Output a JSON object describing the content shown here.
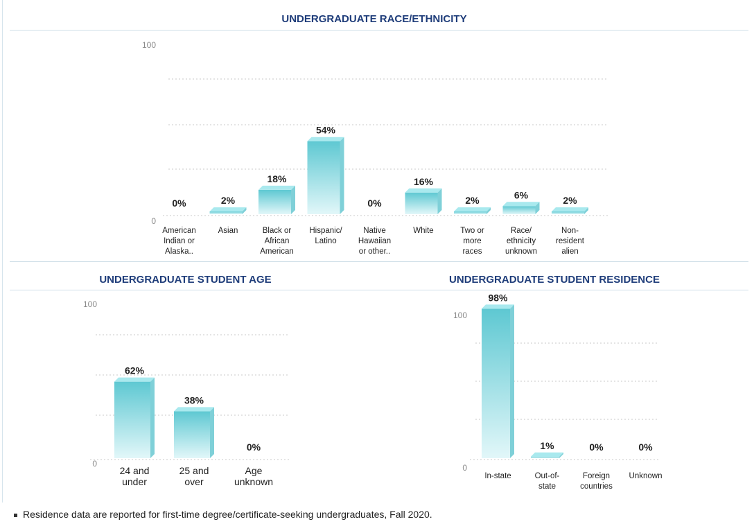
{
  "sections": {
    "race": {
      "title": "UNDERGRADUATE RACE/ETHNICITY"
    },
    "age": {
      "title": "UNDERGRADUATE STUDENT AGE"
    },
    "residence": {
      "title": "UNDERGRADUATE STUDENT RESIDENCE"
    }
  },
  "footnote": "Residence data are reported for first-time degree/certificate-seeking undergraduates, Fall 2020.",
  "colors": {
    "bar_front_top": "#5ec8d2",
    "bar_front_bottom": "#e2f7f9",
    "bar_side": "#7fd0d8",
    "bar_top": "#a9e9ee",
    "grid": "#c8c8c8",
    "title": "#1f3d7a"
  },
  "chart_data": [
    {
      "id": "race",
      "type": "bar",
      "title": "UNDERGRADUATE RACE/ETHNICITY",
      "categories": [
        [
          "American",
          "Indian or",
          "Alaska.."
        ],
        [
          "Asian"
        ],
        [
          "Black or",
          "African",
          "American"
        ],
        [
          "Hispanic/",
          "Latino"
        ],
        [
          "Native",
          "Hawaiian",
          "or other.."
        ],
        [
          "White"
        ],
        [
          "Two or",
          "more",
          "races"
        ],
        [
          "Race/",
          "ethnicity",
          "unknown"
        ],
        [
          "Non-",
          "resident",
          "alien"
        ]
      ],
      "values": [
        0,
        2,
        18,
        54,
        0,
        16,
        2,
        6,
        2
      ],
      "value_labels": [
        "0%",
        "2%",
        "18%",
        "54%",
        "0%",
        "16%",
        "2%",
        "6%",
        "2%"
      ],
      "ylim": [
        0,
        100
      ],
      "yticks": [
        "100",
        "0"
      ],
      "grid": true
    },
    {
      "id": "age",
      "type": "bar",
      "title": "UNDERGRADUATE STUDENT AGE",
      "categories": [
        [
          "24 and",
          "under"
        ],
        [
          "25 and",
          "over"
        ],
        [
          "Age",
          "unknown"
        ]
      ],
      "values": [
        62,
        38,
        0
      ],
      "value_labels": [
        "62%",
        "38%",
        "0%"
      ],
      "ylim": [
        0,
        100
      ],
      "yticks": [
        "100",
        "0"
      ],
      "grid": true
    },
    {
      "id": "residence",
      "type": "bar",
      "title": "UNDERGRADUATE STUDENT RESIDENCE",
      "categories": [
        [
          "In-state"
        ],
        [
          "Out-of-",
          "state"
        ],
        [
          "Foreign",
          "countries"
        ],
        [
          "Unknown"
        ]
      ],
      "values": [
        98,
        1,
        0,
        0
      ],
      "value_labels": [
        "98%",
        "1%",
        "0%",
        "0%"
      ],
      "ylim": [
        0,
        100
      ],
      "yticks": [
        "100",
        "0"
      ],
      "grid": true
    }
  ]
}
